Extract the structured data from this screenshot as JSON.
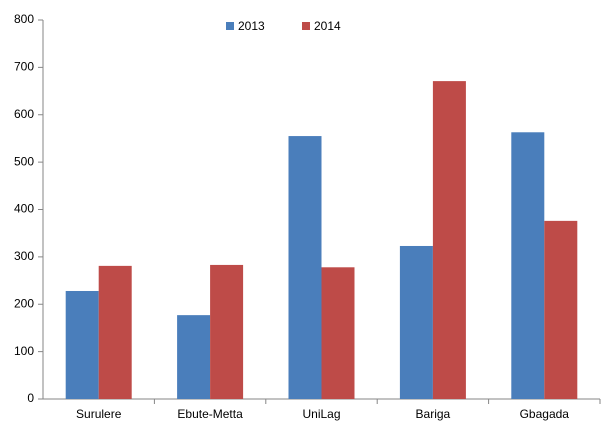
{
  "chart_data": {
    "type": "bar",
    "categories": [
      "Surulere",
      "Ebute-Metta",
      "UniLag",
      "Bariga",
      "Gbagada"
    ],
    "series": [
      {
        "name": "2013",
        "color": "#4a7ebb",
        "values": [
          228,
          177,
          555,
          323,
          563
        ]
      },
      {
        "name": "2014",
        "color": "#be4b48",
        "values": [
          281,
          283,
          278,
          671,
          376
        ]
      }
    ],
    "ylim": [
      0,
      800
    ],
    "yticks": [
      0,
      100,
      200,
      300,
      400,
      500,
      600,
      700,
      800
    ],
    "legend": "top"
  }
}
